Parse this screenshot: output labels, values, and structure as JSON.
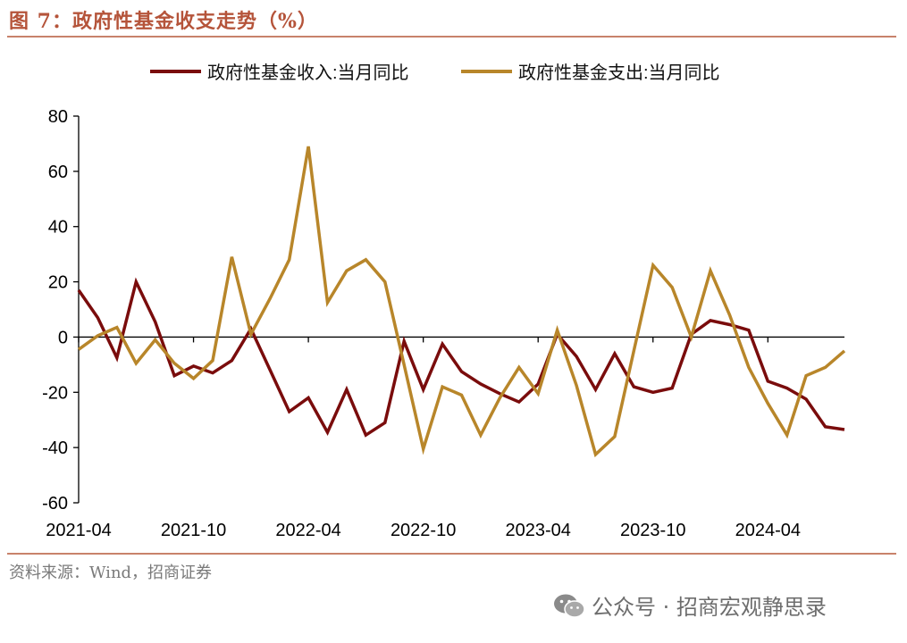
{
  "figure": {
    "title": "图 7：政府性基金收支走势（%）",
    "source": "资料来源：Wind，招商证券",
    "watermark": "公众号 · 招商宏观静思录"
  },
  "colors": {
    "title": "#b5543a",
    "rule": "#c8826b",
    "series_income": "#7a0c0c",
    "series_expense": "#b8862a"
  },
  "chart_data": {
    "type": "line",
    "title": "",
    "xlabel": "",
    "ylabel": "",
    "ylim": [
      -60,
      80
    ],
    "yticks": [
      -60,
      -40,
      -20,
      0,
      20,
      40,
      60,
      80
    ],
    "x": [
      "2021-04",
      "2021-05",
      "2021-06",
      "2021-07",
      "2021-08",
      "2021-09",
      "2021-10",
      "2021-11",
      "2021-12",
      "2022-01",
      "2022-02",
      "2022-03",
      "2022-04",
      "2022-05",
      "2022-06",
      "2022-07",
      "2022-08",
      "2022-09",
      "2022-10",
      "2022-11",
      "2022-12",
      "2023-01",
      "2023-02",
      "2023-03",
      "2023-04",
      "2023-05",
      "2023-06",
      "2023-07",
      "2023-08",
      "2023-09",
      "2023-10",
      "2023-11",
      "2023-12",
      "2024-01",
      "2024-02",
      "2024-03",
      "2024-04",
      "2024-05",
      "2024-06",
      "2024-07",
      "2024-08"
    ],
    "xticks": [
      "2021-04",
      "2021-10",
      "2022-04",
      "2022-10",
      "2023-04",
      "2023-10",
      "2024-04"
    ],
    "legend_position": "top",
    "grid": false,
    "series": [
      {
        "name": "政府性基金收入:当月同比",
        "values": [
          17,
          7,
          -7.5,
          20,
          5.5,
          -14,
          -10.5,
          -13,
          -8.5,
          3,
          -12,
          -27,
          -22,
          -34.5,
          -19,
          -35.5,
          -31,
          -1.5,
          -19,
          -2.5,
          -12.5,
          -17,
          -20.5,
          -23.5,
          -17,
          1,
          -7,
          -19,
          -6,
          -18,
          -20,
          -18.5,
          1,
          6,
          4.5,
          2.5,
          -16,
          -18.5,
          -22.5,
          -32.5,
          -33.5
        ]
      },
      {
        "name": "政府性基金支出:当月同比",
        "values": [
          -4.5,
          0.5,
          3.5,
          -9.5,
          -1,
          -9.5,
          -15,
          -8.5,
          29,
          1,
          14,
          28,
          69,
          12.5,
          24,
          28,
          20,
          -10,
          -40.5,
          -18,
          -21,
          -35.5,
          -22,
          -11,
          -20.5,
          2.5,
          -17.5,
          -42.5,
          -36,
          -5,
          26,
          18,
          0,
          24,
          8,
          -11,
          -24,
          -35.5,
          -14,
          -11,
          -5
        ]
      }
    ]
  }
}
